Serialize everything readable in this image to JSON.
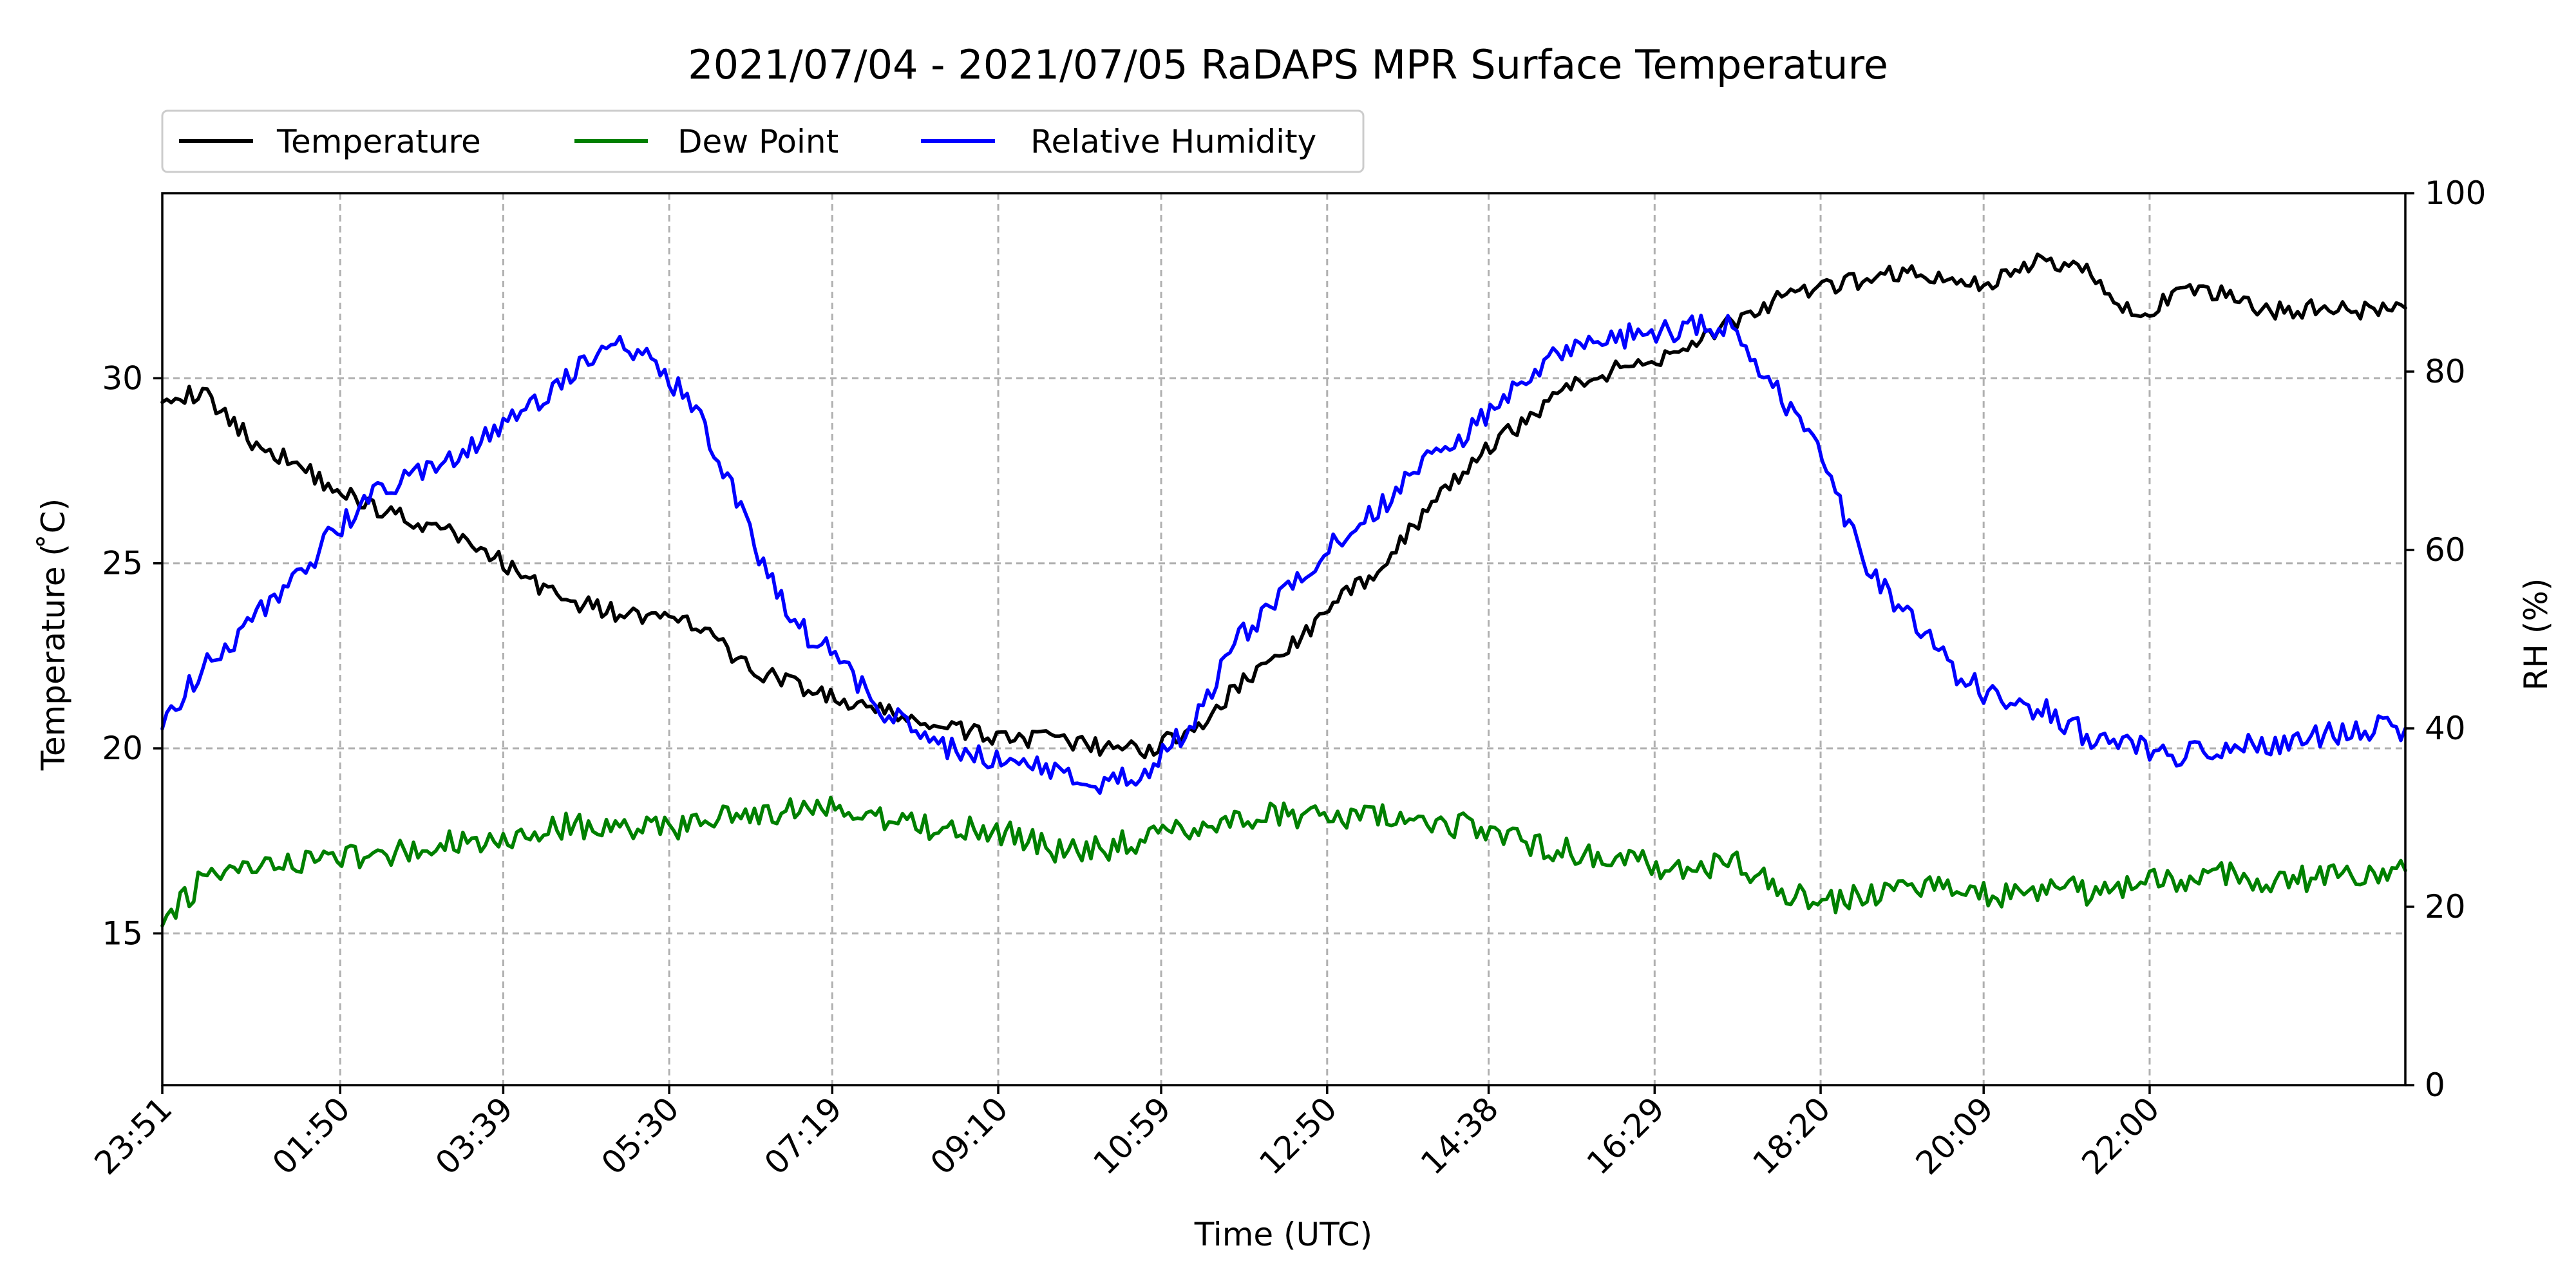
{
  "chart_data": {
    "type": "line",
    "title": "2021/07/04 - 2021/07/05 RaDAPS MPR Surface Temperature",
    "xlabel": "Time (UTC)",
    "ylabel_left": "Temperature ($^\\circ$C)",
    "ylabel_left_display": "Temperature ( ̊C)",
    "ylabel_right": "RH (%)",
    "x_unit": "hours since 23:51 UTC 2021/07/04",
    "xlim": [
      0,
      25.0
    ],
    "ylim_left": [
      10.9,
      35.0
    ],
    "ylim_right": [
      0,
      100
    ],
    "x_ticks": [
      {
        "x": 0.0,
        "label": "23:51"
      },
      {
        "x": 1.983,
        "label": "01:50"
      },
      {
        "x": 3.8,
        "label": "03:39"
      },
      {
        "x": 5.65,
        "label": "05:30"
      },
      {
        "x": 7.467,
        "label": "07:19"
      },
      {
        "x": 9.317,
        "label": "09:10"
      },
      {
        "x": 11.133,
        "label": "10:59"
      },
      {
        "x": 12.983,
        "label": "12:50"
      },
      {
        "x": 14.783,
        "label": "14:38"
      },
      {
        "x": 16.633,
        "label": "16:29"
      },
      {
        "x": 18.483,
        "label": "18:20"
      },
      {
        "x": 20.3,
        "label": "20:09"
      },
      {
        "x": 22.15,
        "label": "22:00"
      }
    ],
    "y_ticks_left": [
      15,
      20,
      25,
      30
    ],
    "y_ticks_right": [
      0,
      20,
      40,
      60,
      80,
      100
    ],
    "grid": true,
    "legend_position": "top-left, above plot",
    "series": [
      {
        "name": "Temperature",
        "axis": "left",
        "color": "#000000",
        "x": [
          0,
          0.5,
          1,
          1.5,
          2,
          2.5,
          3,
          3.5,
          4,
          4.5,
          5,
          5.5,
          6,
          6.5,
          7,
          7.5,
          8,
          8.5,
          9,
          9.5,
          10,
          10.5,
          11,
          11.5,
          12,
          12.5,
          13,
          13.5,
          14,
          14.5,
          15,
          15.5,
          16,
          16.5,
          17,
          17.5,
          18,
          18.5,
          19,
          19.5,
          20,
          20.5,
          21,
          21.5,
          22,
          22.5,
          23,
          23.5,
          24,
          24.5,
          25
        ],
        "values": [
          29.6,
          29.5,
          28.3,
          27.7,
          26.9,
          26.4,
          26.0,
          25.5,
          24.7,
          24.0,
          23.7,
          23.5,
          23.3,
          22.2,
          21.8,
          21.3,
          21.0,
          20.7,
          20.4,
          20.3,
          20.2,
          20.0,
          20.0,
          20.5,
          21.7,
          22.6,
          23.7,
          24.8,
          26.1,
          27.5,
          28.5,
          29.5,
          30.1,
          30.4,
          30.9,
          31.5,
          32.1,
          32.4,
          32.7,
          32.9,
          32.5,
          32.7,
          33.2,
          32.9,
          31.6,
          32.3,
          32.3,
          31.8,
          31.9,
          31.8,
          31.9
        ]
      },
      {
        "name": "Dew Point",
        "axis": "left",
        "color": "#008000",
        "x": [
          0,
          0.5,
          1,
          1.5,
          2,
          2.5,
          3,
          3.5,
          4,
          4.5,
          5,
          5.5,
          6,
          6.5,
          7,
          7.5,
          8,
          8.5,
          9,
          9.5,
          10,
          10.5,
          11,
          11.5,
          12,
          12.5,
          13,
          13.5,
          14,
          14.5,
          15,
          15.5,
          16,
          16.5,
          17,
          17.5,
          18,
          18.5,
          19,
          19.5,
          20,
          20.5,
          21,
          21.5,
          22,
          22.5,
          23,
          23.5,
          24,
          24.5,
          25
        ],
        "values": [
          15.2,
          16.6,
          16.7,
          16.9,
          17.1,
          17.1,
          17.4,
          17.5,
          17.7,
          17.9,
          17.9,
          17.8,
          18.0,
          18.2,
          18.3,
          18.4,
          18.1,
          17.9,
          17.8,
          17.7,
          17.2,
          17.3,
          17.6,
          17.9,
          18.1,
          18.2,
          18.1,
          18.2,
          18.1,
          17.9,
          17.6,
          17.3,
          17.1,
          16.9,
          16.7,
          17.0,
          16.2,
          15.8,
          16.0,
          16.1,
          16.3,
          16.0,
          16.3,
          16.1,
          16.4,
          16.5,
          16.6,
          16.4,
          16.5,
          16.6,
          16.7
        ]
      },
      {
        "name": "Relative Humidity",
        "axis": "right",
        "color": "#0000ff",
        "x": [
          0,
          0.5,
          1,
          1.5,
          2,
          2.5,
          3,
          3.5,
          4,
          4.5,
          5,
          5.5,
          6,
          6.5,
          7,
          7.5,
          8,
          8.5,
          9,
          9.5,
          10,
          10.5,
          11,
          11.5,
          12,
          12.5,
          13,
          13.5,
          14,
          14.5,
          15,
          15.5,
          16,
          16.5,
          17,
          17.5,
          18,
          18.5,
          19,
          19.5,
          20,
          20.5,
          21,
          21.5,
          22,
          22.5,
          23,
          23.5,
          24,
          24.5,
          25
        ],
        "values": [
          41.0,
          47.0,
          52.0,
          57.0,
          63.0,
          67.0,
          69.0,
          72.0,
          75.0,
          79.0,
          84.0,
          81.0,
          75.0,
          63.0,
          52.0,
          48.0,
          42.0,
          39.0,
          37.0,
          36.0,
          35.0,
          34.0,
          35.0,
          41.0,
          50.0,
          55.0,
          60.0,
          64.0,
          69.0,
          73.0,
          77.0,
          82.0,
          84.0,
          84.0,
          85.0,
          85.0,
          78.0,
          70.0,
          58.0,
          52.0,
          46.0,
          43.0,
          42.0,
          39.0,
          38.0,
          37.0,
          38.0,
          38.0,
          39.0,
          40.0,
          40.0
        ]
      }
    ]
  }
}
